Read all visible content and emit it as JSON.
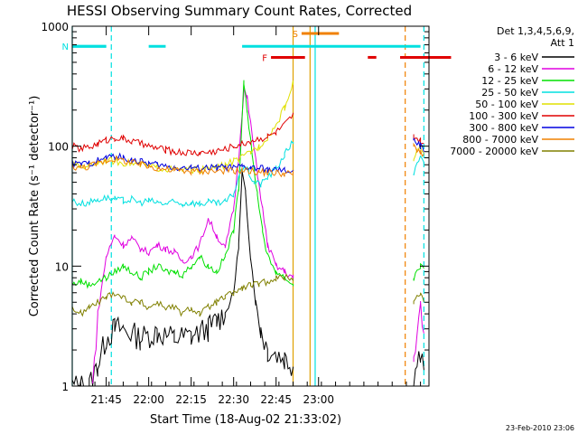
{
  "chart_data": {
    "type": "line",
    "title": "HESSI Observing Summary Count Rates, Corrected",
    "xlabel": "Start Time (18-Aug-02 21:33:02)",
    "ylabel": "Corrected Count Rate (s⁻¹ detector⁻¹)",
    "footer": "23-Feb-2010 23:06",
    "y_scale": "log",
    "ylim": [
      1,
      1000
    ],
    "xlim_minutes": [
      21.55,
      23.65
    ],
    "x_ticks": [
      "21:45",
      "22:00",
      "22:15",
      "22:30",
      "22:45",
      "23:00"
    ],
    "y_ticks": [
      "1",
      "10",
      "100",
      "1000"
    ],
    "legend": {
      "placement": "right",
      "header": [
        "Det 1,3,4,5,6,9,",
        "Att 1"
      ],
      "entries": [
        {
          "label": "3 - 6 keV",
          "color": "#000000"
        },
        {
          "label": "6 - 12 keV",
          "color": "#e000e0"
        },
        {
          "label": "12 - 25 keV",
          "color": "#00e000"
        },
        {
          "label": "25 - 50 keV",
          "color": "#00e0e0"
        },
        {
          "label": "50 - 100 keV",
          "color": "#e0e000"
        },
        {
          "label": "100 - 300 keV",
          "color": "#e00000"
        },
        {
          "label": "300 - 800 keV",
          "color": "#0000e0"
        },
        {
          "label": "800 - 7000 keV",
          "color": "#f08000"
        },
        {
          "label": "7000 - 20000 keV",
          "color": "#808000"
        }
      ]
    },
    "flags": [
      {
        "label": "F",
        "color": "#e00000",
        "level": 550,
        "segments": [
          [
            22.72,
            22.92
          ],
          [
            23.29,
            23.34
          ],
          [
            23.48,
            23.78
          ]
        ]
      },
      {
        "label": "N",
        "color": "#00e0e0",
        "level": 680,
        "segments": [
          [
            21.55,
            21.75
          ],
          [
            22.0,
            22.1
          ]
        ]
      },
      {
        "label": "S",
        "color": "#f08000",
        "level": 870,
        "segments": [
          [
            22.9,
            23.12
          ]
        ]
      }
    ],
    "night_bars": [
      [
        21.55,
        21.75
      ],
      [
        22.55,
        23.6
      ]
    ],
    "vlines": [
      {
        "x": 21.55,
        "color": "#00e0e0",
        "style": "solid"
      },
      {
        "x": 21.78,
        "color": "#00e0e0",
        "style": "dashed"
      },
      {
        "x": 22.85,
        "color": "#e0a000",
        "style": "solid"
      },
      {
        "x": 22.95,
        "color": "#e0a000",
        "style": "solid"
      },
      {
        "x": 22.98,
        "color": "#00e0e0",
        "style": "solid"
      },
      {
        "x": 23.51,
        "color": "#f08000",
        "style": "dashed"
      },
      {
        "x": 23.62,
        "color": "#00e0e0",
        "style": "dashed"
      }
    ],
    "gap": [
      22.86,
      23.56
    ],
    "series": [
      {
        "name": "3 - 6 keV",
        "color": "#000000",
        "points": [
          [
            21.55,
            1
          ],
          [
            21.65,
            1
          ],
          [
            21.7,
            1.5
          ],
          [
            21.75,
            2.5
          ],
          [
            21.8,
            3
          ],
          [
            21.85,
            3
          ],
          [
            21.95,
            2.5
          ],
          [
            22.05,
            2.8
          ],
          [
            22.15,
            2.5
          ],
          [
            22.25,
            2.6
          ],
          [
            22.35,
            3
          ],
          [
            22.4,
            3.5
          ],
          [
            22.45,
            4
          ],
          [
            22.5,
            6
          ],
          [
            22.53,
            15
          ],
          [
            22.55,
            60
          ],
          [
            22.57,
            40
          ],
          [
            22.6,
            12
          ],
          [
            22.63,
            5
          ],
          [
            22.66,
            3
          ],
          [
            22.7,
            2
          ],
          [
            22.8,
            1.7
          ],
          [
            22.85,
            1.5
          ],
          [
            23.56,
            1.2
          ],
          [
            23.6,
            2
          ],
          [
            23.62,
            1.5
          ]
        ]
      },
      {
        "name": "6 - 12 keV",
        "color": "#e000e0",
        "points": [
          [
            21.67,
            1
          ],
          [
            21.7,
            4
          ],
          [
            21.75,
            12
          ],
          [
            21.8,
            18
          ],
          [
            21.85,
            15
          ],
          [
            21.9,
            17
          ],
          [
            21.95,
            14
          ],
          [
            22.0,
            13
          ],
          [
            22.05,
            15
          ],
          [
            22.1,
            14
          ],
          [
            22.15,
            13
          ],
          [
            22.2,
            11
          ],
          [
            22.25,
            12
          ],
          [
            22.3,
            15
          ],
          [
            22.35,
            25
          ],
          [
            22.4,
            18
          ],
          [
            22.45,
            14
          ],
          [
            22.5,
            30
          ],
          [
            22.53,
            80
          ],
          [
            22.56,
            300
          ],
          [
            22.58,
            250
          ],
          [
            22.61,
            120
          ],
          [
            22.64,
            60
          ],
          [
            22.67,
            30
          ],
          [
            22.7,
            15
          ],
          [
            22.75,
            10
          ],
          [
            22.8,
            9
          ],
          [
            22.85,
            8
          ],
          [
            23.56,
            1.5
          ],
          [
            23.6,
            5
          ],
          [
            23.62,
            3
          ]
        ]
      },
      {
        "name": "12 - 25 keV",
        "color": "#00e000",
        "points": [
          [
            21.55,
            7
          ],
          [
            21.6,
            7.5
          ],
          [
            21.65,
            7
          ],
          [
            21.7,
            7.5
          ],
          [
            21.75,
            8
          ],
          [
            21.8,
            9
          ],
          [
            21.85,
            10
          ],
          [
            21.9,
            9
          ],
          [
            21.95,
            8
          ],
          [
            22.0,
            9
          ],
          [
            22.05,
            10
          ],
          [
            22.1,
            9
          ],
          [
            22.15,
            9
          ],
          [
            22.2,
            8.5
          ],
          [
            22.25,
            10
          ],
          [
            22.3,
            12
          ],
          [
            22.35,
            10
          ],
          [
            22.4,
            9
          ],
          [
            22.45,
            12
          ],
          [
            22.5,
            20
          ],
          [
            22.53,
            45
          ],
          [
            22.56,
            350
          ],
          [
            22.58,
            200
          ],
          [
            22.61,
            80
          ],
          [
            22.64,
            40
          ],
          [
            22.67,
            20
          ],
          [
            22.7,
            12
          ],
          [
            22.75,
            9
          ],
          [
            22.8,
            8
          ],
          [
            22.85,
            7
          ],
          [
            23.56,
            8
          ],
          [
            23.6,
            10
          ],
          [
            23.62,
            9
          ]
        ]
      },
      {
        "name": "25 - 50 keV",
        "color": "#00e0e0",
        "points": [
          [
            21.55,
            35
          ],
          [
            21.6,
            33
          ],
          [
            21.65,
            34
          ],
          [
            21.7,
            36
          ],
          [
            21.75,
            37
          ],
          [
            21.8,
            36
          ],
          [
            21.85,
            35
          ],
          [
            21.9,
            36
          ],
          [
            21.95,
            34
          ],
          [
            22.0,
            35
          ],
          [
            22.05,
            34
          ],
          [
            22.1,
            33
          ],
          [
            22.15,
            34
          ],
          [
            22.2,
            33
          ],
          [
            22.25,
            34
          ],
          [
            22.3,
            33
          ],
          [
            22.35,
            34
          ],
          [
            22.4,
            33
          ],
          [
            22.45,
            34
          ],
          [
            22.5,
            40
          ],
          [
            22.53,
            55
          ],
          [
            22.56,
            70
          ],
          [
            22.59,
            60
          ],
          [
            22.62,
            50
          ],
          [
            22.66,
            48
          ],
          [
            22.7,
            55
          ],
          [
            22.75,
            65
          ],
          [
            22.8,
            85
          ],
          [
            22.85,
            110
          ],
          [
            23.56,
            60
          ],
          [
            23.6,
            80
          ],
          [
            23.62,
            70
          ]
        ]
      },
      {
        "name": "50 - 100 keV",
        "color": "#e0e000",
        "points": [
          [
            21.55,
            70
          ],
          [
            21.6,
            68
          ],
          [
            21.65,
            70
          ],
          [
            21.7,
            74
          ],
          [
            21.75,
            76
          ],
          [
            21.8,
            75
          ],
          [
            21.85,
            73
          ],
          [
            21.9,
            72
          ],
          [
            21.95,
            70
          ],
          [
            22.0,
            68
          ],
          [
            22.05,
            66
          ],
          [
            22.1,
            65
          ],
          [
            22.15,
            64
          ],
          [
            22.2,
            63
          ],
          [
            22.25,
            64
          ],
          [
            22.3,
            63
          ],
          [
            22.35,
            65
          ],
          [
            22.4,
            66
          ],
          [
            22.45,
            70
          ],
          [
            22.5,
            75
          ],
          [
            22.55,
            80
          ],
          [
            22.6,
            90
          ],
          [
            22.65,
            100
          ],
          [
            22.7,
            120
          ],
          [
            22.75,
            150
          ],
          [
            22.8,
            210
          ],
          [
            22.85,
            330
          ],
          [
            23.56,
            80
          ],
          [
            23.6,
            100
          ],
          [
            23.62,
            90
          ]
        ]
      },
      {
        "name": "100 - 300 keV",
        "color": "#e00000",
        "points": [
          [
            21.55,
            100
          ],
          [
            21.6,
            95
          ],
          [
            21.65,
            98
          ],
          [
            21.7,
            105
          ],
          [
            21.75,
            112
          ],
          [
            21.8,
            118
          ],
          [
            21.85,
            115
          ],
          [
            21.9,
            110
          ],
          [
            21.95,
            105
          ],
          [
            22.0,
            100
          ],
          [
            22.05,
            96
          ],
          [
            22.1,
            93
          ],
          [
            22.15,
            90
          ],
          [
            22.2,
            89
          ],
          [
            22.25,
            88
          ],
          [
            22.3,
            88
          ],
          [
            22.35,
            89
          ],
          [
            22.4,
            91
          ],
          [
            22.45,
            95
          ],
          [
            22.5,
            100
          ],
          [
            22.55,
            105
          ],
          [
            22.6,
            110
          ],
          [
            22.65,
            115
          ],
          [
            22.7,
            120
          ],
          [
            22.75,
            130
          ],
          [
            22.8,
            150
          ],
          [
            22.85,
            180
          ],
          [
            23.56,
            120
          ],
          [
            23.6,
            110
          ],
          [
            23.62,
            100
          ]
        ]
      },
      {
        "name": "300 - 800 keV",
        "color": "#0000e0",
        "points": [
          [
            21.55,
            72
          ],
          [
            21.6,
            70
          ],
          [
            21.65,
            72
          ],
          [
            21.7,
            76
          ],
          [
            21.75,
            80
          ],
          [
            21.8,
            82
          ],
          [
            21.85,
            80
          ],
          [
            21.9,
            77
          ],
          [
            21.95,
            74
          ],
          [
            22.0,
            72
          ],
          [
            22.05,
            70
          ],
          [
            22.1,
            68
          ],
          [
            22.15,
            67
          ],
          [
            22.2,
            66
          ],
          [
            22.25,
            66
          ],
          [
            22.3,
            65
          ],
          [
            22.35,
            66
          ],
          [
            22.4,
            66
          ],
          [
            22.45,
            67
          ],
          [
            22.5,
            66
          ],
          [
            22.55,
            67
          ],
          [
            22.6,
            66
          ],
          [
            22.65,
            65
          ],
          [
            22.7,
            64
          ],
          [
            22.75,
            63
          ],
          [
            22.8,
            62
          ],
          [
            22.85,
            62
          ],
          [
            23.56,
            110
          ],
          [
            23.6,
            100
          ],
          [
            23.62,
            90
          ]
        ]
      },
      {
        "name": "800 - 7000 keV",
        "color": "#f08000",
        "points": [
          [
            21.55,
            68
          ],
          [
            21.6,
            66
          ],
          [
            21.65,
            68
          ],
          [
            21.7,
            72
          ],
          [
            21.75,
            76
          ],
          [
            21.8,
            78
          ],
          [
            21.85,
            76
          ],
          [
            21.9,
            73
          ],
          [
            21.95,
            70
          ],
          [
            22.0,
            68
          ],
          [
            22.05,
            66
          ],
          [
            22.1,
            64
          ],
          [
            22.15,
            63
          ],
          [
            22.2,
            62
          ],
          [
            22.25,
            62
          ],
          [
            22.3,
            61
          ],
          [
            22.35,
            62
          ],
          [
            22.4,
            62
          ],
          [
            22.45,
            63
          ],
          [
            22.5,
            62
          ],
          [
            22.55,
            63
          ],
          [
            22.6,
            62
          ],
          [
            22.65,
            61
          ],
          [
            22.7,
            60
          ],
          [
            22.75,
            60
          ],
          [
            22.8,
            59
          ],
          [
            22.85,
            59
          ],
          [
            23.56,
            100
          ],
          [
            23.6,
            90
          ],
          [
            23.62,
            80
          ]
        ]
      },
      {
        "name": "7000 - 20000 keV",
        "color": "#808000",
        "points": [
          [
            21.55,
            4.5
          ],
          [
            21.6,
            4
          ],
          [
            21.65,
            4.5
          ],
          [
            21.7,
            5
          ],
          [
            21.75,
            5.5
          ],
          [
            21.8,
            6
          ],
          [
            21.85,
            5.5
          ],
          [
            21.9,
            5
          ],
          [
            21.95,
            5
          ],
          [
            22.0,
            4.5
          ],
          [
            22.05,
            5
          ],
          [
            22.1,
            4.5
          ],
          [
            22.15,
            4.5
          ],
          [
            22.2,
            4
          ],
          [
            22.25,
            4.5
          ],
          [
            22.3,
            4
          ],
          [
            22.35,
            4.5
          ],
          [
            22.4,
            5
          ],
          [
            22.45,
            5.5
          ],
          [
            22.5,
            6
          ],
          [
            22.55,
            6.5
          ],
          [
            22.6,
            7
          ],
          [
            22.65,
            7
          ],
          [
            22.7,
            7.5
          ],
          [
            22.75,
            8
          ],
          [
            22.8,
            8
          ],
          [
            22.85,
            8
          ],
          [
            23.56,
            5
          ],
          [
            23.6,
            6
          ],
          [
            23.62,
            5
          ]
        ]
      }
    ]
  }
}
